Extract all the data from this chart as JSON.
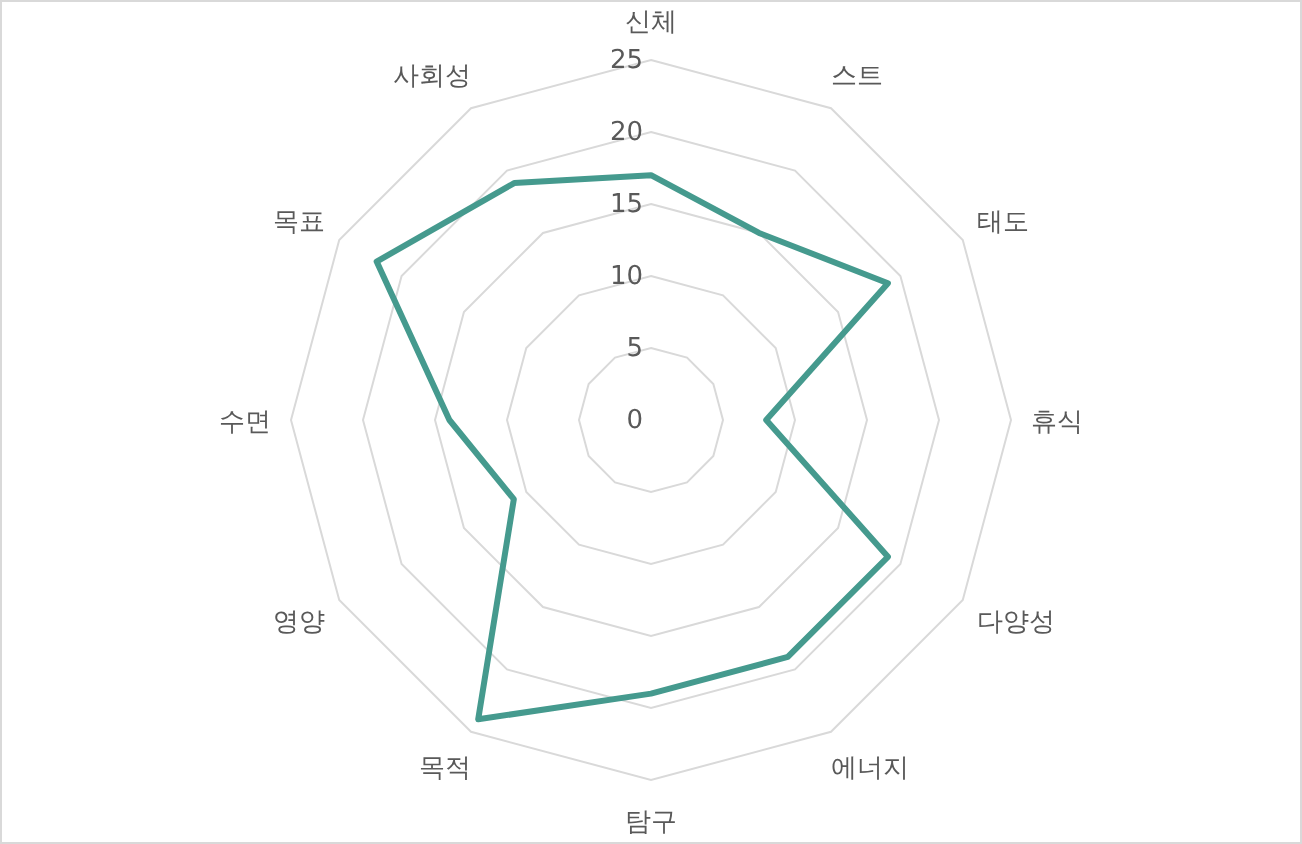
{
  "chart_data": {
    "type": "radar",
    "categories": [
      "신체",
      "스트",
      "태도",
      "휴식",
      "다양성",
      "에너지",
      "탐구",
      "목적",
      "영양",
      "수면",
      "목표",
      "사회성"
    ],
    "series": [
      {
        "color": "#459a8e",
        "values": [
          17,
          15,
          19,
          8,
          19,
          19,
          19,
          24,
          11,
          14,
          22,
          19
        ]
      }
    ],
    "ylim": [
      0,
      25
    ],
    "yticks": [
      0,
      5,
      10,
      15,
      20,
      25
    ],
    "grid": true,
    "marker": "none",
    "line_style": "solid"
  }
}
